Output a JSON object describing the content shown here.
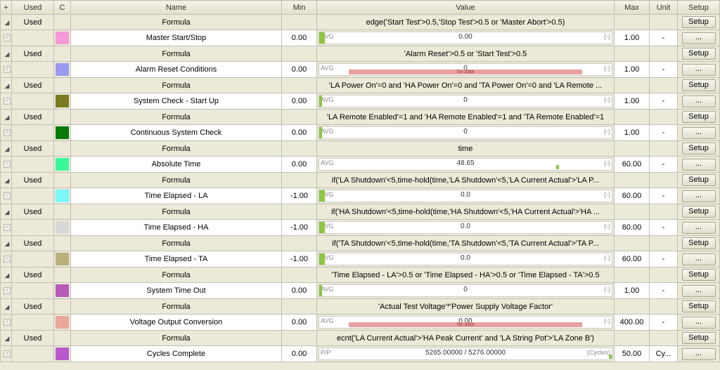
{
  "headers": {
    "plus": "+",
    "used": "Used",
    "c": "C",
    "name": "Name",
    "min": "Min",
    "value": "Value",
    "max": "Max",
    "unit": "Unit",
    "setup": "Setup"
  },
  "labels": {
    "formula": "Formula",
    "setup_btn": "Setup",
    "dots": "...",
    "avg": "AVG",
    "paren": "(-)",
    "nodata": "No data",
    "used": "Used"
  },
  "rows": [
    {
      "type": "formula",
      "value": "edge('Start Test'>0.5,'Stop Test'>0.5 or 'Master Abort'>0.5)"
    },
    {
      "type": "data",
      "color": "#f49ad6",
      "name": "Master Start/Stop",
      "min": "0.00",
      "avg_center": "0.00",
      "fill_pct": 2,
      "max": "1.00",
      "unit": "-"
    },
    {
      "type": "formula",
      "value": "'Alarm Reset'>0.5 or 'Start Test'>0.5"
    },
    {
      "type": "data",
      "color": "#9a9af0",
      "name": "Alarm Reset Conditions",
      "min": "0.00",
      "avg_center": "0",
      "nodata": true,
      "max": "1.00",
      "unit": "-"
    },
    {
      "type": "formula",
      "value": "'LA Power On'=0 and 'HA Power On'=0 and 'TA Power On'=0 and 'LA Remote ..."
    },
    {
      "type": "data",
      "color": "#7a7a1e",
      "name": "System Check - Start Up",
      "min": "0.00",
      "avg_center": "0",
      "fill_pct": 1,
      "max": "1.00",
      "unit": "-"
    },
    {
      "type": "formula",
      "value": "'LA Remote Enabled'=1 and 'HA Remote Enabled'=1 and 'TA Remote Enabled'=1"
    },
    {
      "type": "data",
      "color": "#0a7a0a",
      "name": "Continuous System Check",
      "min": "0.00",
      "avg_center": "0",
      "fill_pct": 1,
      "max": "1.00",
      "unit": "-"
    },
    {
      "type": "formula",
      "value": "time"
    },
    {
      "type": "data",
      "color": "#3af79a",
      "name": "Absolute Time",
      "min": "0.00",
      "avg_center": "48.65",
      "marker_pct": 81,
      "max": "60.00",
      "unit": "-"
    },
    {
      "type": "formula",
      "value": "if('LA Shutdown'<5,time-hold(time,'LA Shutdown'<5,'LA Current Actual'>'LA P..."
    },
    {
      "type": "data",
      "color": "#7af7f7",
      "name": "Time Elapsed - LA",
      "min": "-1.00",
      "avg_center": "0.0",
      "fill_pct": 2,
      "max": "60.00",
      "unit": "-"
    },
    {
      "type": "formula",
      "value": "if('HA Shutdown'<5,time-hold(time,'HA Shutdown'<5,'HA Current Actual'>'HA ..."
    },
    {
      "type": "data",
      "color": "#d8d8d8",
      "name": "Time Elapsed - HA",
      "min": "-1.00",
      "avg_center": "0.0",
      "fill_pct": 2,
      "max": "60.00",
      "unit": "-"
    },
    {
      "type": "formula",
      "value": "if('TA Shutdown'<5,time-hold(time,'TA Shutdown'<5,'TA Current Actual'>'TA P..."
    },
    {
      "type": "data",
      "color": "#b8b07a",
      "name": "Time Elapsed - TA",
      "min": "-1.00",
      "avg_center": "0.0",
      "fill_pct": 2,
      "max": "60.00",
      "unit": "-"
    },
    {
      "type": "formula",
      "value": "'Time Elapsed - LA'>0.5 or 'Time Elapsed - HA'>0.5 or 'Time Elapsed - TA'>0.5"
    },
    {
      "type": "data",
      "color": "#b85ab8",
      "name": "System Time Out",
      "min": "0.00",
      "avg_center": "0",
      "fill_pct": 1,
      "max": "1.00",
      "unit": "-"
    },
    {
      "type": "formula",
      "value": "'Actual Test Voltage'*'Power Supply Voltage Factor'"
    },
    {
      "type": "data",
      "color": "#e8a89a",
      "name": "Voltage Output Conversion",
      "min": "0.00",
      "avg_center": "0.00",
      "nodata": true,
      "max": "400.00",
      "unit": "-"
    },
    {
      "type": "formula",
      "value": "ecnt('LA Current Actual'>'HA Peak Current' and 'LA String Pot'>'LA Zone B')"
    },
    {
      "type": "data",
      "color": "#b85acc",
      "name": "Cycles Complete",
      "min": "0.00",
      "avg_left_label": "P/P",
      "avg_center": "5265.00000 / 5276.00000",
      "right_label": "(Cycles)",
      "marker_pct": 99,
      "max": "50.00",
      "unit": "Cy..."
    }
  ]
}
